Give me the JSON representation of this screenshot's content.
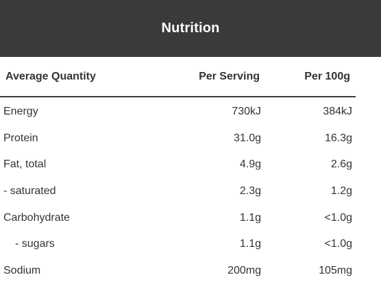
{
  "header": {
    "title": "Nutrition",
    "background": "#3a3a3a",
    "text_color": "#ffffff"
  },
  "table": {
    "columns": [
      "Average Quantity",
      "Per Serving",
      "Per 100g"
    ],
    "rows": [
      {
        "label": "Energy",
        "per_serving": "730kJ",
        "per_100g": "384kJ"
      },
      {
        "label": "Protein",
        "per_serving": "31.0g",
        "per_100g": "16.3g"
      },
      {
        "label": "Fat, total",
        "per_serving": "4.9g",
        "per_100g": "2.6g"
      },
      {
        "label": "- saturated",
        "per_serving": "2.3g",
        "per_100g": "1.2g"
      },
      {
        "label": "Carbohydrate",
        "per_serving": "1.1g",
        "per_100g": "<1.0g"
      },
      {
        "label": "- sugars",
        "per_serving": "1.1g",
        "per_100g": "<1.0g"
      },
      {
        "label": "Sodium",
        "per_serving": "200mg",
        "per_100g": "105mg"
      }
    ]
  }
}
